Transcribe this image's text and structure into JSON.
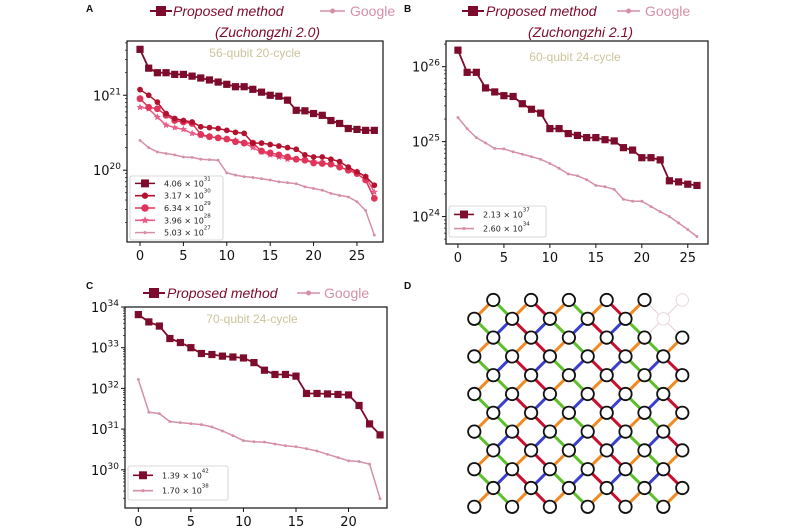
{
  "colors": {
    "proposed": "#7d0b2b",
    "google": "#d590a5",
    "annotation": "#cbc49c",
    "edge_orange": "#f08a24",
    "edge_blue": "#3a3fcf",
    "edge_red": "#c8102e",
    "edge_green": "#5cc02a",
    "faded": "#ecd6dc"
  },
  "chart_data": [
    {
      "panel": "A",
      "type": "line",
      "yscale": "log",
      "header": {
        "proposed": "Proposed method",
        "proposed_sub": "(Zuchongzhi 2.0)",
        "google": "Google"
      },
      "annotation": "56-qubit 20-cycle",
      "xlim": [
        -1.5,
        28.0
      ],
      "ylim": [
        1.1e+19,
        5.3e+21
      ],
      "xticks": [
        0,
        5,
        10,
        15,
        20,
        25
      ],
      "xtick_labels": [
        "0",
        "5",
        "10",
        "15",
        "20",
        "25"
      ],
      "yticks": [
        1e+20,
        1e+21
      ],
      "ytick_labels": [
        "10^20",
        "10^21"
      ],
      "legend": "lower-left",
      "series": [
        {
          "name": "4.06 × 10^31",
          "color": "#7d0b2b",
          "marker": "square",
          "values": [
            4.1e+21,
            2.3e+21,
            2e+21,
            2e+21,
            1.9e+21,
            1.9e+21,
            1.8e+21,
            1.7e+21,
            1.6e+21,
            1.5e+21,
            1.4e+21,
            1.3e+21,
            1.3e+21,
            1.2e+21,
            1.1e+21,
            1e+21,
            9.7e+20,
            8.6e+20,
            6.3e+20,
            6.2e+20,
            5.7e+20,
            5.4e+20,
            4.6e+20,
            4.2e+20,
            3.6e+20,
            3.5e+20,
            3.4e+20,
            3.4e+20
          ]
        },
        {
          "name": "3.17 × 10^30",
          "color": "#b3122e",
          "marker": "circle",
          "values": [
            1.19e+21,
            1e+21,
            8.1e+20,
            5.7e+20,
            4.9e+20,
            4.6e+20,
            4.4e+20,
            3.8e+20,
            3.7e+20,
            3.6e+20,
            3.4e+20,
            3.2e+20,
            3.1e+20,
            2.3e+20,
            2.3e+20,
            2.2e+20,
            2.1e+20,
            2e+20,
            1.9e+20,
            1.6e+20,
            1.5e+20,
            1.5e+20,
            1.4e+20,
            1.3e+20,
            1.1e+20,
            9.5e+19,
            8.2e+19,
            6.3e+19
          ]
        },
        {
          "name": "6.34 × 10^29",
          "color": "#e0355a",
          "marker": "octagon",
          "values": [
            9e+20,
            6.9e+20,
            6.6e+20,
            5.4e+20,
            4.6e+20,
            4.4e+20,
            4.2e+20,
            3e+20,
            2.8e+20,
            2.7e+20,
            2.6e+20,
            2.4e+20,
            2.3e+20,
            2.3e+20,
            1.8e+20,
            1.7e+20,
            1.6e+20,
            1.5e+20,
            1.4e+20,
            1.36e+20,
            1.25e+20,
            1.23e+20,
            1.2e+20,
            1.1e+20,
            1e+20,
            9e+19,
            7.4e+19,
            4.2e+19
          ]
        },
        {
          "name": "3.96 × 10^28",
          "color": "#ea5c86",
          "marker": "star",
          "values": [
            6.9e+20,
            6.6e+20,
            5.1e+20,
            4e+20,
            3.7e+20,
            3.5e+20,
            3.1e+20,
            2.9e+20,
            2.8e+20,
            2.7e+20,
            2.6e+20,
            2.5e+20,
            2.3e+20,
            2e+20,
            1.75e+20,
            1.6e+20,
            1.5e+20,
            1.4e+20,
            1.4e+20,
            1.36e+20,
            1.3e+20,
            1.25e+20,
            1.2e+20,
            1.1e+20,
            1e+20,
            9.5e+19,
            8.2e+19,
            5.1e+19
          ]
        },
        {
          "name": "5.03 × 10^27",
          "color": "#d590a5",
          "marker": "dot",
          "values": [
            2.5e+20,
            2e+20,
            1.75e+20,
            1.67e+20,
            1.6e+20,
            1.5e+20,
            1.48e+20,
            1.4e+20,
            1.38e+20,
            1.36e+20,
            9.2e+19,
            8.6e+19,
            8.2e+19,
            8e+19,
            7.7e+19,
            7.4e+19,
            7e+19,
            6.8e+19,
            6.6e+19,
            6e+19,
            5.7e+19,
            5.4e+19,
            4.9e+19,
            4.6e+19,
            4.4e+19,
            3.8e+19,
            2.9e+19,
            1.36e+19
          ]
        }
      ]
    },
    {
      "panel": "B",
      "type": "line",
      "yscale": "log",
      "header": {
        "proposed": "Proposed method",
        "proposed_sub": "(Zuchongzhi 2.1)",
        "google": "Google"
      },
      "annotation": "60-qubit 24-cycle",
      "xlim": [
        -1.3,
        27.2
      ],
      "ylim": [
        4.3e+23,
        2.2e+26
      ],
      "xticks": [
        0,
        5,
        10,
        15,
        20,
        25
      ],
      "xtick_labels": [
        "0",
        "5",
        "10",
        "15",
        "20",
        "25"
      ],
      "yticks": [
        1e+24,
        1e+25,
        1e+26
      ],
      "ytick_labels": [
        "10^24",
        "10^25",
        "10^26"
      ],
      "legend": "lower-left",
      "series": [
        {
          "name": "2.13 × 10^37",
          "color": "#7d0b2b",
          "marker": "square",
          "values": [
            1.66e+26,
            8.4e+25,
            8.4e+25,
            5.2e+25,
            4.6e+25,
            4.1e+25,
            4e+25,
            3.2e+25,
            2.7e+25,
            2.4e+25,
            1.49e+25,
            1.49e+25,
            1.28e+25,
            1.21e+25,
            1.13e+25,
            1.13e+25,
            1.06e+25,
            1.02e+25,
            8.3e+24,
            7.7e+24,
            6.1e+24,
            6.1e+24,
            5.7e+24,
            3e+24,
            2.9e+24,
            2.7e+24,
            2.6e+24
          ]
        },
        {
          "name": "2.60 × 10^34",
          "color": "#d590a5",
          "marker": "dot",
          "values": [
            2.1e+25,
            1.49e+25,
            1.13e+25,
            9.6e+24,
            8.1e+24,
            8e+24,
            7.3e+24,
            6.8e+24,
            6.3e+24,
            5.8e+24,
            5.1e+24,
            4.4e+24,
            3.7e+24,
            3.5e+24,
            3.1e+24,
            2.6e+24,
            2.5e+24,
            2.3e+24,
            1.7e+24,
            1.6e+24,
            1.6e+24,
            1.36e+24,
            1.16e+24,
            1e+24,
            8.2e+23,
            6.7e+23,
            5.4e+23
          ]
        }
      ]
    },
    {
      "panel": "C",
      "type": "line",
      "yscale": "log",
      "header": {
        "proposed": "Proposed method",
        "proposed_sub": "",
        "google": "Google"
      },
      "annotation": "70-qubit 24-cycle",
      "xlim": [
        -1.27,
        23.66
      ],
      "ylim": [
        1.15e+29,
        1e+34
      ],
      "xticks": [
        0,
        5,
        10,
        15,
        20
      ],
      "xtick_labels": [
        "0",
        "5",
        "10",
        "15",
        "20"
      ],
      "yticks": [
        1e+30,
        1e+31,
        1e+32,
        1e+33,
        1e+34
      ],
      "ytick_labels": [
        "10^30",
        "10^31",
        "10^32",
        "10^33",
        "10^34"
      ],
      "legend": "lower-left",
      "series": [
        {
          "name": "1.39 × 10^42",
          "color": "#7d0b2b",
          "marker": "square",
          "values": [
            6.5e+33,
            4.3e+33,
            3.4e+33,
            1.68e+33,
            1.34e+33,
            1e+33,
            7.2e+32,
            6.8e+32,
            6.2e+32,
            5.9e+32,
            5.6e+32,
            4.3e+32,
            2.8e+32,
            2.2e+32,
            2.2e+32,
            2e+32,
            7.5e+31,
            7.5e+31,
            7.3e+31,
            7.1e+31,
            6.9e+31,
            3.8e+31,
            1.34e+31,
            7.2e+30
          ]
        },
        {
          "name": "1.70 × 10^38",
          "color": "#d590a5",
          "marker": "dot",
          "values": [
            1.66e+32,
            2.6e+31,
            2.4e+31,
            1.53e+31,
            1.44e+31,
            1.36e+31,
            1.29e+31,
            1.13e+31,
            9e+30,
            6.9e+30,
            5.2e+30,
            4.9e+30,
            4.8e+30,
            4.3e+30,
            3.9e+30,
            3.7e+30,
            3.3e+30,
            2.9e+30,
            2.4e+30,
            2e+30,
            1.66e+30,
            1.6e+30,
            1.38e+30,
            1.95e+29
          ]
        }
      ]
    }
  ],
  "diagram": {
    "panel": "D",
    "node_shape": "circle",
    "edge_colors": [
      "orange",
      "blue",
      "red",
      "green"
    ]
  }
}
